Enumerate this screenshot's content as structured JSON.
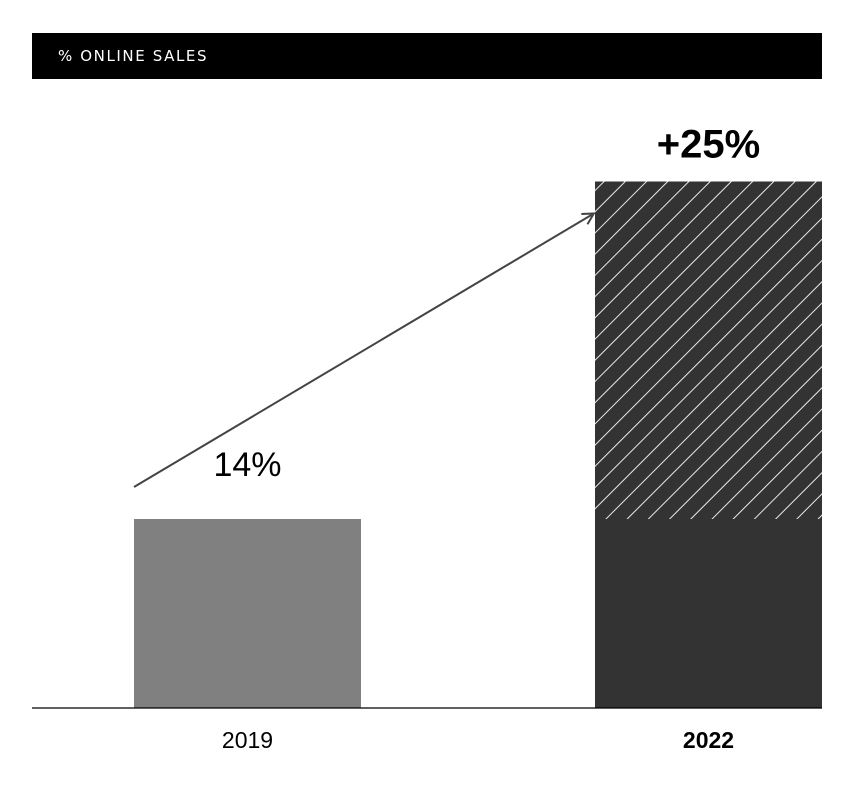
{
  "header": {
    "title": "% ONLINE SALES"
  },
  "chart_data": {
    "type": "bar",
    "categories": [
      "2019",
      "2022"
    ],
    "series": [
      {
        "values": [
          14,
          14
        ],
        "color": "#808080"
      },
      {
        "values": [
          0,
          25
        ],
        "color": "#333333",
        "pattern": "diagonal-hatch"
      }
    ],
    "base_color_2022": "#333333",
    "data_labels": [
      "14%",
      "+25%"
    ],
    "ylim": [
      0,
      40
    ],
    "grid": false,
    "legend": "none",
    "annotations": [
      {
        "type": "arrow",
        "direction": "up-right",
        "from_category": "2019",
        "to_category": "2022"
      }
    ]
  }
}
